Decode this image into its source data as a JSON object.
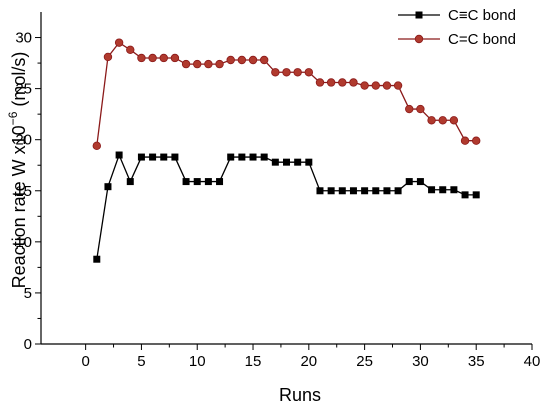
{
  "chart_data": {
    "type": "line",
    "title": "",
    "xlabel": "Runs",
    "ylabel_prefix": "Reaction rate W x10",
    "ylabel_exponent": "−6",
    "ylabel_suffix": " (mol/s)",
    "xlim": [
      -4,
      40
    ],
    "ylim": [
      0,
      32.5
    ],
    "xticks": [
      0,
      5,
      10,
      15,
      20,
      25,
      30,
      35,
      40
    ],
    "yticks": [
      0,
      5,
      10,
      15,
      20,
      25,
      30
    ],
    "legend_position": "top-right",
    "series": [
      {
        "name": "C≡C bond",
        "marker": "square",
        "color": "#000000",
        "x": [
          1,
          2,
          3,
          4,
          5,
          6,
          7,
          8,
          9,
          10,
          11,
          12,
          13,
          14,
          15,
          16,
          17,
          18,
          19,
          20,
          21,
          22,
          23,
          24,
          25,
          26,
          27,
          28,
          29,
          30,
          31,
          32,
          33,
          34,
          35
        ],
        "y": [
          8.3,
          15.4,
          18.5,
          15.9,
          18.3,
          18.3,
          18.3,
          18.3,
          15.9,
          15.9,
          15.9,
          15.9,
          18.3,
          18.3,
          18.3,
          18.3,
          17.8,
          17.8,
          17.8,
          17.8,
          15.0,
          15.0,
          15.0,
          15.0,
          15.0,
          15.0,
          15.0,
          15.0,
          15.9,
          15.9,
          15.1,
          15.1,
          15.1,
          14.6,
          14.6
        ]
      },
      {
        "name": "C=C bond",
        "marker": "circle",
        "color": "#8B1A1A",
        "marker_fill": "#B03A2E",
        "x": [
          1,
          2,
          3,
          4,
          5,
          6,
          7,
          8,
          9,
          10,
          11,
          12,
          13,
          14,
          15,
          16,
          17,
          18,
          19,
          20,
          21,
          22,
          23,
          24,
          25,
          26,
          27,
          28,
          29,
          30,
          31,
          32,
          33,
          34,
          35
        ],
        "y": [
          19.4,
          28.1,
          29.5,
          28.8,
          28.0,
          28.0,
          28.0,
          28.0,
          27.4,
          27.4,
          27.4,
          27.4,
          27.8,
          27.8,
          27.8,
          27.8,
          26.6,
          26.6,
          26.6,
          26.6,
          25.6,
          25.6,
          25.6,
          25.6,
          25.3,
          25.3,
          25.3,
          25.3,
          23.0,
          23.0,
          21.9,
          21.9,
          21.9,
          19.9,
          19.9
        ]
      }
    ]
  }
}
